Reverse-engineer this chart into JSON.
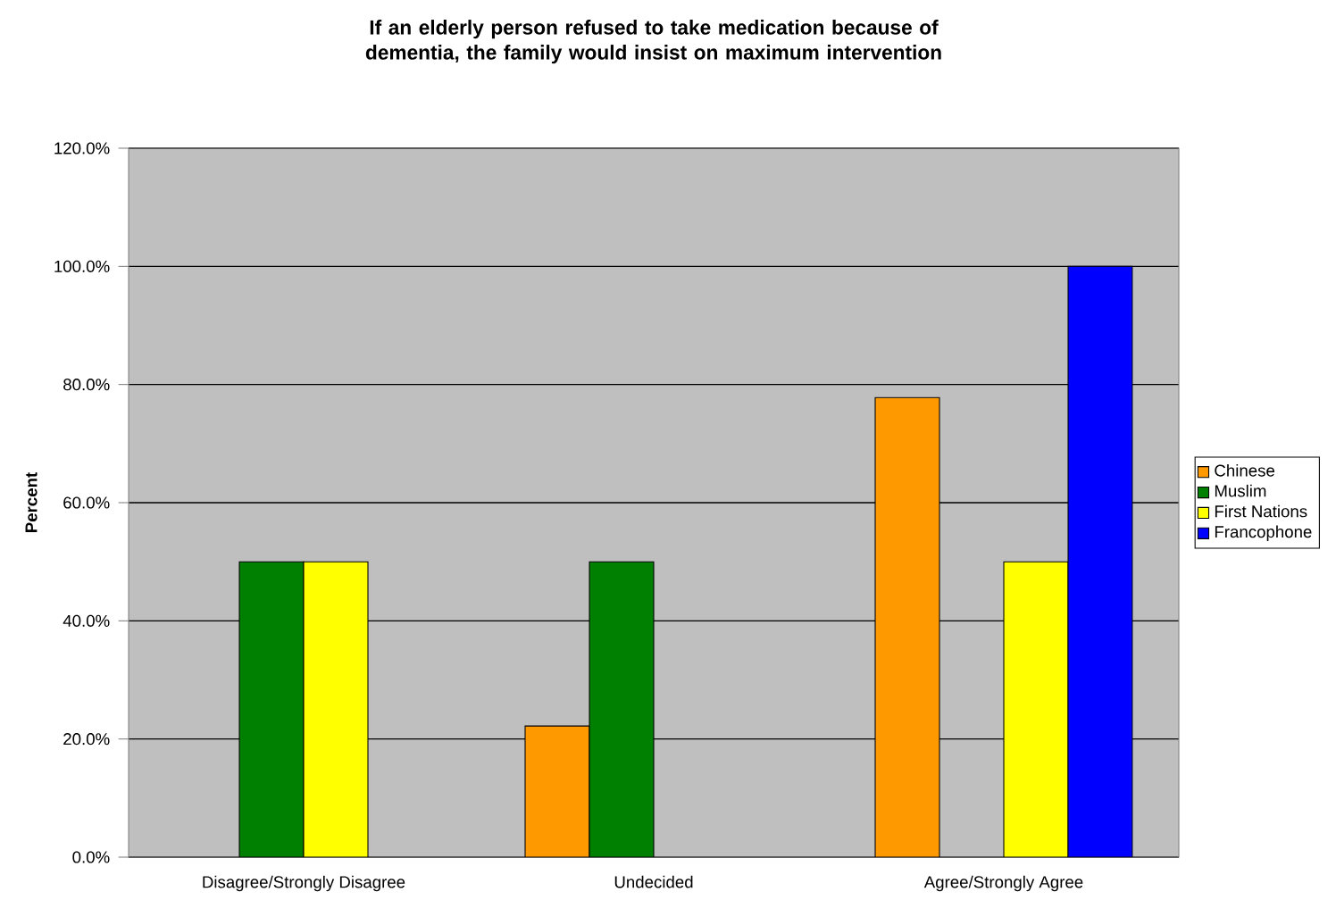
{
  "chart_data": {
    "type": "bar",
    "title": "If an elderly person refused to take medication because of dementia, the family would insist on maximum intervention",
    "ylabel": "Percent",
    "categories": [
      "Disagree/Strongly Disagree",
      "Undecided",
      "Agree/Strongly Agree"
    ],
    "series": [
      {
        "name": "Chinese",
        "color": "#ff9900",
        "values": [
          0,
          22.2,
          77.8
        ]
      },
      {
        "name": "Muslim",
        "color": "#008000",
        "values": [
          50,
          50,
          0
        ]
      },
      {
        "name": "First Nations",
        "color": "#ffff00",
        "values": [
          50,
          0,
          50
        ]
      },
      {
        "name": "Francophone",
        "color": "#0000ff",
        "values": [
          0,
          0,
          100
        ]
      }
    ],
    "ylim": [
      0,
      120
    ],
    "yticks": [
      {
        "value": 0,
        "label": "0.0%"
      },
      {
        "value": 20,
        "label": "20.0%"
      },
      {
        "value": 40,
        "label": "40.0%"
      },
      {
        "value": 60,
        "label": "60.0%"
      },
      {
        "value": 80,
        "label": "80.0%"
      },
      {
        "value": 100,
        "label": "100.0%"
      },
      {
        "value": 120,
        "label": "120.0%"
      }
    ],
    "grid": "y",
    "legend": "right"
  }
}
